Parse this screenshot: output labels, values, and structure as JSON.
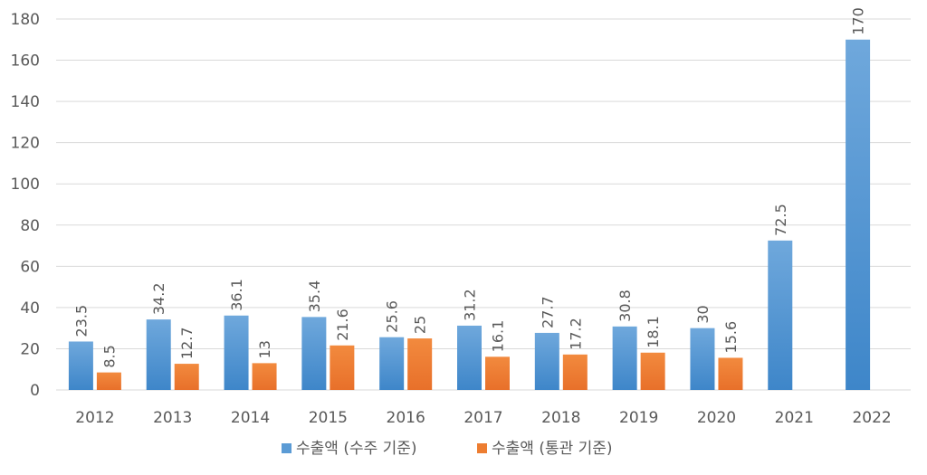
{
  "chart_data": {
    "type": "bar",
    "categories": [
      "2012",
      "2013",
      "2014",
      "2015",
      "2016",
      "2017",
      "2018",
      "2019",
      "2020",
      "2021",
      "2022"
    ],
    "series": [
      {
        "name": "수출액 (수주 기준)",
        "color": "#5B9BD5",
        "values": [
          23.5,
          34.2,
          36.1,
          35.4,
          25.6,
          31.2,
          27.7,
          30.8,
          30,
          72.5,
          170
        ]
      },
      {
        "name": "수출액 (통관 기준)",
        "color": "#ED7D31",
        "values": [
          8.5,
          12.7,
          13,
          21.6,
          25,
          16.1,
          17.2,
          18.1,
          15.6,
          null,
          null
        ]
      }
    ],
    "ylim": [
      0,
      180
    ],
    "yticks": [
      "0",
      "20",
      "40",
      "60",
      "80",
      "100",
      "120",
      "140",
      "160",
      "180"
    ],
    "grid": true,
    "legend_position": "bottom",
    "data_labels": "rotated-vertical"
  }
}
